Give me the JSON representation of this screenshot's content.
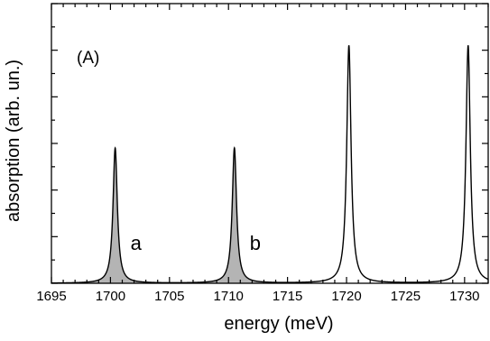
{
  "chart_data": {
    "type": "line",
    "panel_label": "(A)",
    "xlabel": "energy (meV)",
    "ylabel": "absorption (arb. un.)",
    "xlim": [
      1695,
      1732
    ],
    "ylim": [
      0,
      1.2
    ],
    "xticks": [
      1695,
      1700,
      1705,
      1710,
      1715,
      1720,
      1725,
      1730
    ],
    "xtick_labels": [
      "1695",
      "1700",
      "1705",
      "1710",
      "1715",
      "1720",
      "1725",
      "1730"
    ],
    "y_tick_labels_shown": false,
    "peaks": [
      {
        "label": "a",
        "center": 1700.4,
        "height": 0.58,
        "shaded": true
      },
      {
        "label": "b",
        "center": 1710.5,
        "height": 0.58,
        "shaded": true
      },
      {
        "label": "",
        "center": 1720.2,
        "height": 1.02,
        "shaded": false
      },
      {
        "label": "",
        "center": 1730.3,
        "height": 1.02,
        "shaded": false
      }
    ],
    "line_color": "#000000",
    "fill_color": "#b4b4b4"
  }
}
